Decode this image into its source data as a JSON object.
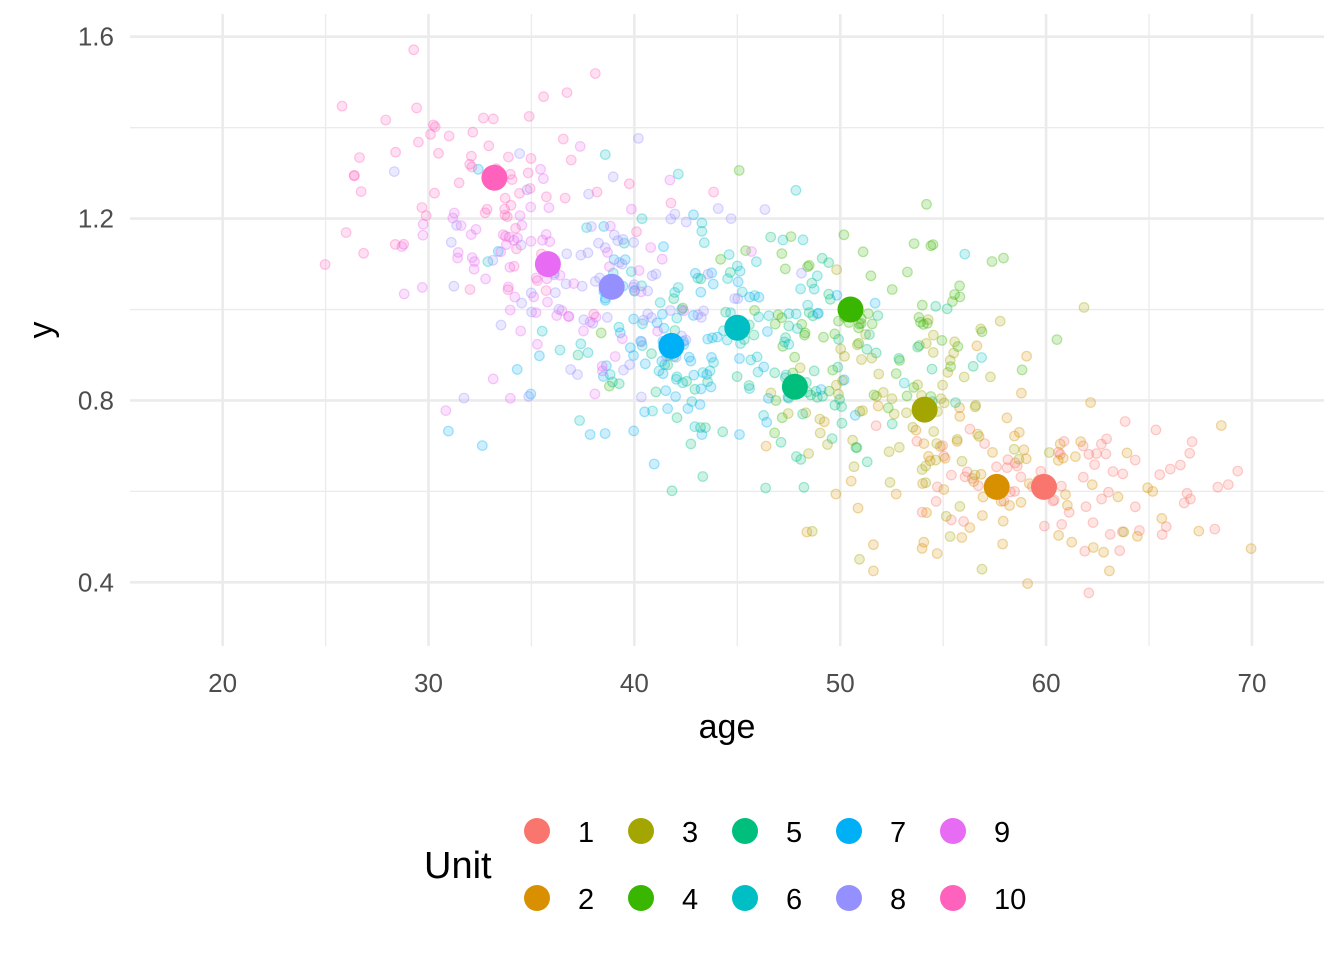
{
  "chart_data": {
    "type": "scatter",
    "xlabel": "age",
    "ylabel": "y",
    "xlim": [
      15.5,
      73.5
    ],
    "ylim": [
      0.26,
      1.65
    ],
    "x_ticks": [
      20,
      30,
      40,
      50,
      60,
      70
    ],
    "y_ticks": [
      0.4,
      0.8,
      1.2,
      1.6
    ],
    "grid": true,
    "legend": {
      "title": "Unit",
      "position": "bottom"
    },
    "series": [
      {
        "name": "1",
        "color": "#F8766D",
        "center": {
          "x": 59.9,
          "y": 0.61
        },
        "spread": {
          "x": 4.2,
          "y": 0.08
        }
      },
      {
        "name": "2",
        "color": "#D89000",
        "center": {
          "x": 57.6,
          "y": 0.61
        },
        "spread": {
          "x": 4.2,
          "y": 0.1
        }
      },
      {
        "name": "3",
        "color": "#A3A500",
        "center": {
          "x": 54.1,
          "y": 0.78
        },
        "spread": {
          "x": 4.0,
          "y": 0.12
        }
      },
      {
        "name": "4",
        "color": "#39B600",
        "center": {
          "x": 50.5,
          "y": 1.0
        },
        "spread": {
          "x": 4.0,
          "y": 0.12
        }
      },
      {
        "name": "5",
        "color": "#00BF7D",
        "center": {
          "x": 47.8,
          "y": 0.83
        },
        "spread": {
          "x": 4.0,
          "y": 0.12
        }
      },
      {
        "name": "6",
        "color": "#00BFC4",
        "center": {
          "x": 45.0,
          "y": 0.96
        },
        "spread": {
          "x": 4.0,
          "y": 0.12
        }
      },
      {
        "name": "7",
        "color": "#00B0F6",
        "center": {
          "x": 41.8,
          "y": 0.92
        },
        "spread": {
          "x": 4.0,
          "y": 0.12
        }
      },
      {
        "name": "8",
        "color": "#9590FF",
        "center": {
          "x": 38.9,
          "y": 1.05
        },
        "spread": {
          "x": 4.0,
          "y": 0.12
        }
      },
      {
        "name": "9",
        "color": "#E76BF3",
        "center": {
          "x": 35.8,
          "y": 1.1
        },
        "spread": {
          "x": 4.0,
          "y": 0.14
        }
      },
      {
        "name": "10",
        "color": "#FF62BC",
        "center": {
          "x": 33.2,
          "y": 1.29
        },
        "spread": {
          "x": 4.2,
          "y": 0.12
        }
      }
    ],
    "points_per_series": 75
  }
}
